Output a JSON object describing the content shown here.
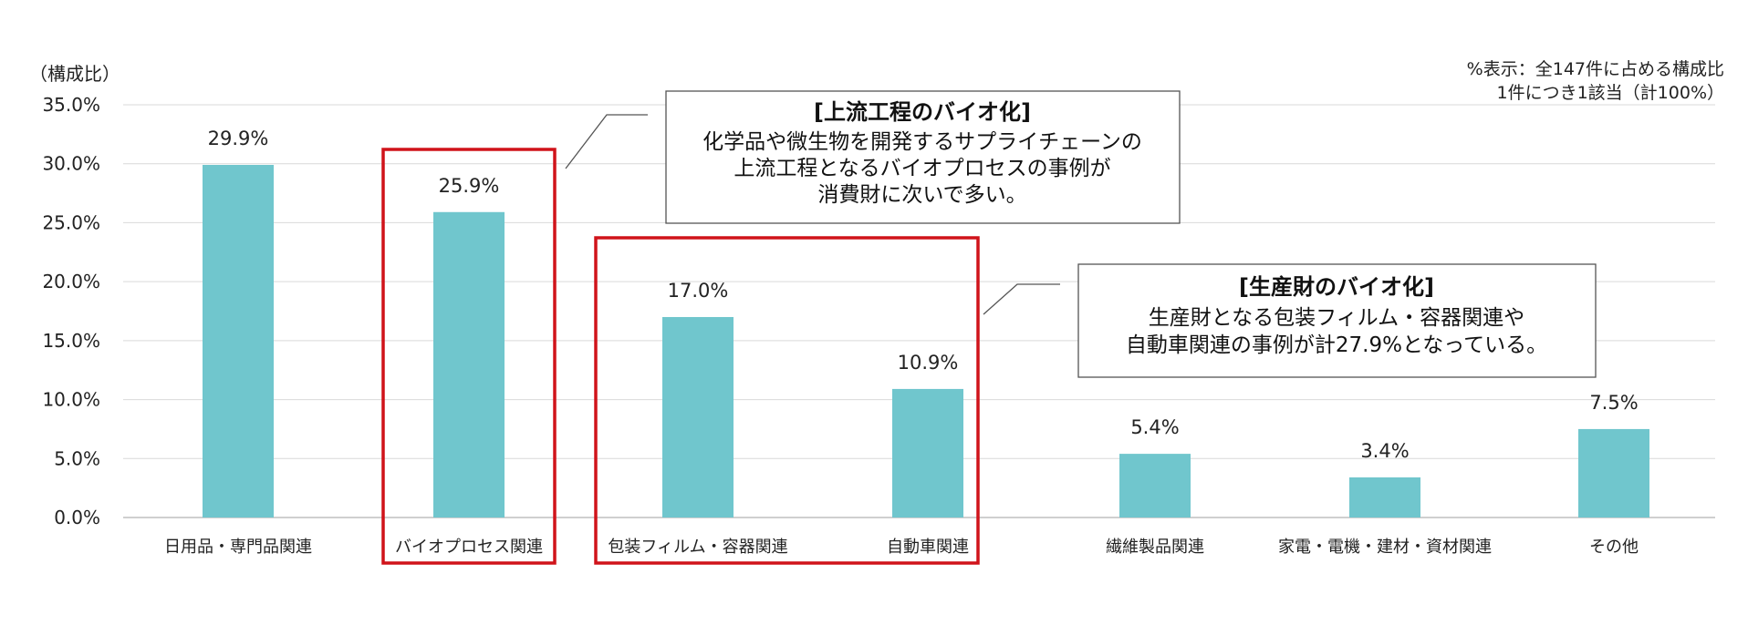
{
  "chart_data": {
    "type": "bar",
    "ylabel": "（構成比）",
    "ylim": [
      0,
      35
    ],
    "yticks": [
      "0.0%",
      "5.0%",
      "10.0%",
      "15.0%",
      "20.0%",
      "25.0%",
      "30.0%",
      "35.0%"
    ],
    "categories": [
      "日用品・専門品関連",
      "バイオプロセス関連",
      "包装フィルム・容器関連",
      "自動車関連",
      "繊維製品関連",
      "家電・電機・建材・資材関連",
      "その他"
    ],
    "values": [
      29.9,
      25.9,
      17.0,
      10.9,
      5.4,
      3.4,
      7.5
    ],
    "data_labels": [
      "29.9%",
      "25.9%",
      "17.0%",
      "10.9%",
      "5.4%",
      "3.4%",
      "7.5%"
    ],
    "bar_color": "#70C6CD",
    "grid": true,
    "notes": [
      "%表示：全147件に占める構成比",
      "1件につき1該当（計100%）"
    ],
    "highlight_color": "#D0131A",
    "callouts": [
      {
        "title": "[上流工程のバイオ化]",
        "lines": [
          "化学品や微生物を開発するサプライチェーンの",
          "上流工程となるバイオプロセスの事例が",
          "消費財に次いで多い。"
        ]
      },
      {
        "title": "[生産財のバイオ化]",
        "lines": [
          "生産財となる包装フィルム・容器関連や",
          "自動車関連の事例が計27.9%となっている。"
        ]
      }
    ]
  }
}
